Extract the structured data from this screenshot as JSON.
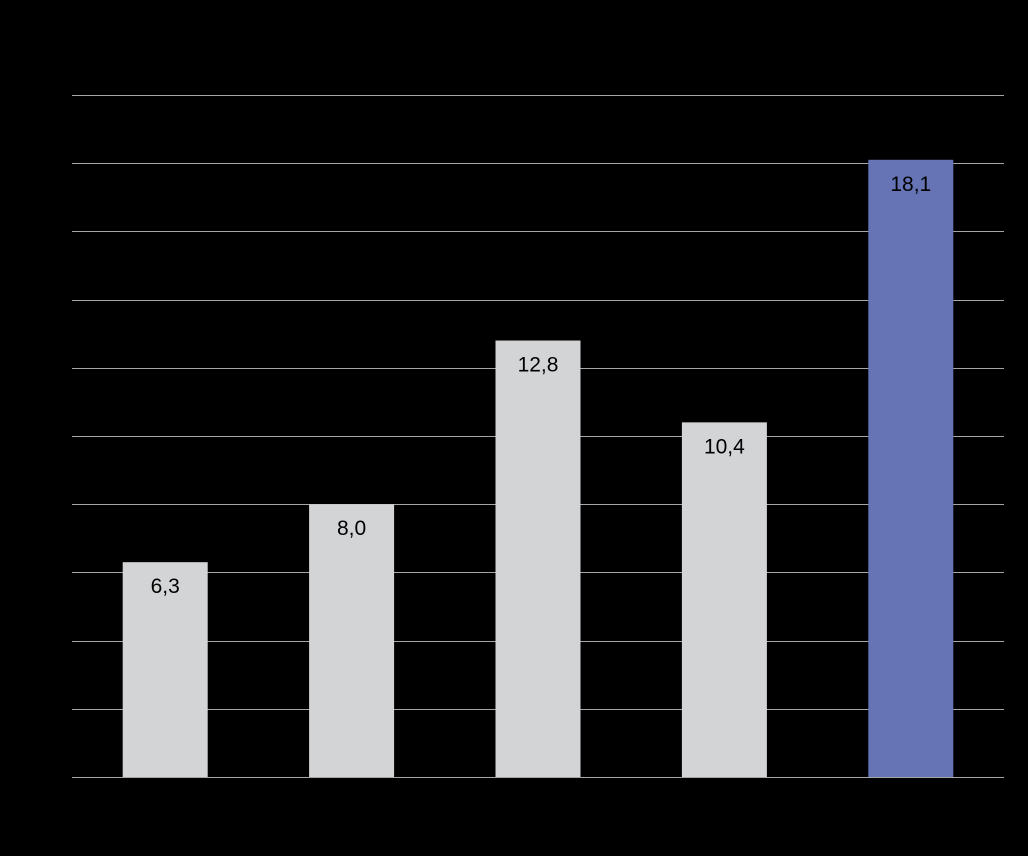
{
  "chart_data": {
    "type": "bar",
    "categories": [
      "",
      "",
      "",
      "",
      ""
    ],
    "values": [
      6.3,
      8.0,
      12.8,
      10.4,
      18.1
    ],
    "value_labels": [
      "6,3",
      "8,0",
      "12,8",
      "10,4",
      "18,1"
    ],
    "title": "",
    "xlabel": "",
    "ylabel": "",
    "ylim": [
      0,
      20
    ],
    "y_tick_step": 2,
    "grid": true,
    "legend": "none"
  },
  "colors": {
    "background": "#000000",
    "default_bar": "#d3d4d6",
    "highlight_bar": "#6674b5",
    "gridline": "#a6a6a6",
    "label": "#000000"
  },
  "highlight_index": 4
}
